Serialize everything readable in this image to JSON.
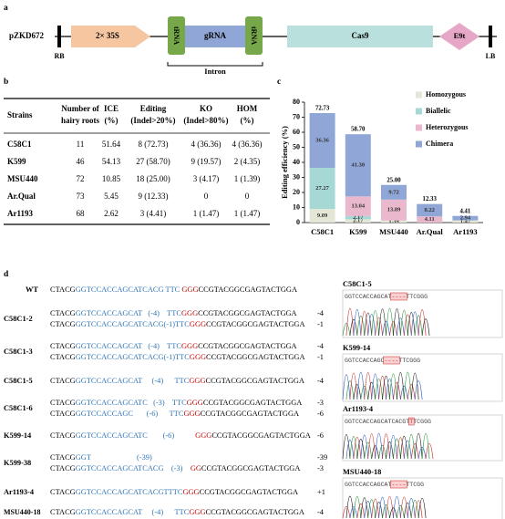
{
  "panel_a": {
    "label": "a",
    "construct": "pZKD672",
    "rb": "RB",
    "lb": "LB",
    "promoter": "2× 35S",
    "trna1": "tRNA",
    "grna": "gRNA",
    "trna2": "tRNA",
    "cas9": "Cas9",
    "terminator": "E9t",
    "intron": "Intron"
  },
  "panel_b": {
    "label": "b",
    "header": [
      [
        "Strains"
      ],
      [
        "Number of",
        "hairy roots"
      ],
      [
        "ICE",
        "(%)"
      ],
      [
        "Editing",
        "(Indel>20%)"
      ],
      [
        "KO",
        "(Indel>80%)"
      ],
      [
        "HOM",
        "(%)"
      ]
    ],
    "rows": [
      [
        "C58C1",
        11,
        51.64,
        "8 (72.73)",
        "4 (36.36)",
        "4 (36.36)"
      ],
      [
        "K599",
        46,
        54.13,
        "27 (58.70)",
        "9 (19.57)",
        "2 (4.35)"
      ],
      [
        "MSU440",
        72,
        10.85,
        "18 (25.00)",
        "3 (4.17)",
        "1 (1.39)"
      ],
      [
        "Ar.Qual",
        73,
        5.45,
        "9 (12.33)",
        0,
        0
      ],
      [
        "Ar1193",
        68,
        2.62,
        "3 (4.41)",
        "1 (1.47)",
        "1 (1.47)"
      ]
    ]
  },
  "chart_data": {
    "type": "stacked_bar",
    "panel_label": "c",
    "y_label": "Editing efficiency (%)",
    "categories": [
      "C58C1",
      "K599",
      "MSU440",
      "Ar.Qual",
      "Ar1193"
    ],
    "series": [
      {
        "name": "Homozygous",
        "color": "#e4e6d6",
        "values": [
          9.09,
          2.17,
          1.39,
          0,
          1.47
        ],
        "value_labels": [
          "9.09",
          "2.17",
          "1.39",
          null,
          "1.47"
        ]
      },
      {
        "name": "Biallelic",
        "color": "#a6d9d6",
        "values": [
          27.27,
          2.17,
          0,
          0,
          0
        ],
        "value_labels": [
          "27.27",
          "2.17",
          null,
          null,
          null
        ]
      },
      {
        "name": "Heterozygous",
        "color": "#e9b8cc",
        "values": [
          0,
          13.04,
          13.89,
          4.11,
          0
        ],
        "value_labels": [
          null,
          "13.04",
          "13.89",
          "4.11",
          null
        ]
      },
      {
        "name": "Chimera",
        "color": "#8fa6d6",
        "values": [
          36.36,
          41.3,
          9.72,
          8.22,
          2.94
        ],
        "value_labels": [
          "36.36",
          "41.30",
          "9.72",
          "8.22",
          "2.94"
        ]
      }
    ],
    "totals": [
      72.73,
      58.7,
      25,
      12.33,
      4.41
    ],
    "total_labels": [
      "72.73",
      "58.70",
      "25.00",
      "12.33",
      "4.41"
    ],
    "ylim": [
      0,
      80
    ],
    "yticks": [
      0,
      10,
      20,
      30,
      40,
      50,
      60,
      70,
      80
    ],
    "grid": false,
    "legend": "top-right"
  },
  "panel_d": {
    "label": "d",
    "rows": [
      {
        "name": "WT",
        "lines": [
          {
            "segments": [
              {
                "text": "CTACG",
                "color": "#000000"
              },
              {
                "text": "GGTCCACCAGCATCACG TTC ",
                "color": "#2e75b6"
              },
              {
                "text": "GGG",
                "color": "#c00000"
              },
              {
                "text": "CCGTACGGCGAGTACTGGA",
                "color": "#000000"
              }
            ]
          }
        ]
      },
      {
        "name": "C58C1-2",
        "lines": [
          {
            "segments": [
              {
                "text": "CTACG",
                "color": "#000000"
              },
              {
                "text": "GGTCCACCAGCAT   (-4)    TTC",
                "color": "#2e75b6"
              },
              {
                "text": "GGG",
                "color": "#c00000"
              },
              {
                "text": "CCGTACGGCGAGTACTGGA",
                "color": "#000000"
              }
            ],
            "indel": "-4"
          },
          {
            "segments": [
              {
                "text": "CTACG",
                "color": "#000000"
              },
              {
                "text": "GGTCCACCAGCATCACG(-1)TTC",
                "color": "#2e75b6"
              },
              {
                "text": "GGG",
                "color": "#c00000"
              },
              {
                "text": "CCGTACGGCGAGTACTGGA",
                "color": "#000000"
              }
            ],
            "indel": "-1"
          }
        ]
      },
      {
        "name": "C58C1-3",
        "lines": [
          {
            "segments": [
              {
                "text": "CTACG",
                "color": "#000000"
              },
              {
                "text": "GGTCCACCAGCAT   (-4)    TTC",
                "color": "#2e75b6"
              },
              {
                "text": "GGG",
                "color": "#c00000"
              },
              {
                "text": "CCGTACGGCGAGTACTGGA",
                "color": "#000000"
              }
            ],
            "indel": "-4"
          },
          {
            "segments": [
              {
                "text": "CTACG",
                "color": "#000000"
              },
              {
                "text": "GGTCCACCAGCATCACG(-1)TTC",
                "color": "#2e75b6"
              },
              {
                "text": "GGG",
                "color": "#c00000"
              },
              {
                "text": "CCGTACGGCGAGTACTGGA",
                "color": "#000000"
              }
            ],
            "indel": "-1"
          }
        ]
      },
      {
        "name": "C58C1-5",
        "lines": [
          {
            "segments": [
              {
                "text": "CTACG",
                "color": "#000000"
              },
              {
                "text": "GGTCCACCAGCAT     (-4)      TTC",
                "color": "#2e75b6"
              },
              {
                "text": "GGG",
                "color": "#c00000"
              },
              {
                "text": "CCGTACGGCGAGTACTGGA",
                "color": "#000000"
              }
            ],
            "indel": "-4"
          }
        ]
      },
      {
        "name": "C58C1-6",
        "lines": [
          {
            "segments": [
              {
                "text": "CTACG",
                "color": "#000000"
              },
              {
                "text": "GGTCCACCAGCATC   (-3)    TTC",
                "color": "#2e75b6"
              },
              {
                "text": "GGG",
                "color": "#c00000"
              },
              {
                "text": "CCGTACGGCGAGTACTGGA",
                "color": "#000000"
              }
            ],
            "indel": "-3"
          },
          {
            "segments": [
              {
                "text": "CTACG",
                "color": "#000000"
              },
              {
                "text": "GGTCCACCAGC       (-6)      TTC",
                "color": "#2e75b6"
              },
              {
                "text": "GGG",
                "color": "#c00000"
              },
              {
                "text": "CCGTACGGCGAGTACTGGA",
                "color": "#000000"
              }
            ],
            "indel": "-6"
          }
        ]
      },
      {
        "name": "K599-14",
        "lines": [
          {
            "segments": [
              {
                "text": "CTACG",
                "color": "#000000"
              },
              {
                "text": "GGTCCACCAGCATC        (-6)           ",
                "color": "#2e75b6"
              },
              {
                "text": "GGG",
                "color": "#c00000"
              },
              {
                "text": "CCGTACGGCGAGTACTGGA",
                "color": "#000000"
              }
            ],
            "indel": "-6"
          }
        ]
      },
      {
        "name": "K599-38",
        "lines": [
          {
            "segments": [
              {
                "text": "CTACG",
                "color": "#000000"
              },
              {
                "text": "GGT                        (-39)",
                "color": "#2e75b6"
              }
            ],
            "indel": "-39"
          },
          {
            "segments": [
              {
                "text": "CTACG",
                "color": "#000000"
              },
              {
                "text": "GGTCCACCAGCATCACG    (-3)    ",
                "color": "#2e75b6"
              },
              {
                "text": "GG",
                "color": "#c00000"
              },
              {
                "text": "CCGTACGGCGAGTACTGGA",
                "color": "#000000"
              }
            ],
            "indel": "-3"
          }
        ]
      },
      {
        "name": "Ar1193-4",
        "lines": [
          {
            "segments": [
              {
                "text": "CTACG",
                "color": "#000000"
              },
              {
                "text": "GGTCCACCAGCATCACGTTTC",
                "color": "#2e75b6"
              },
              {
                "text": "GGG",
                "color": "#c00000"
              },
              {
                "text": "CCGTACGGCGAGTACTGGA",
                "color": "#000000"
              }
            ],
            "indel": "+1"
          }
        ]
      },
      {
        "name": "MSU440-18",
        "lines": [
          {
            "segments": [
              {
                "text": "CTACG",
                "color": "#000000"
              },
              {
                "text": "GGTCCACCAGCAT     (-4)      TTC",
                "color": "#2e75b6"
              },
              {
                "text": "GGG",
                "color": "#c00000"
              },
              {
                "text": "CCGTACGGCGAGTACTGGA",
                "color": "#000000"
              }
            ],
            "indel": "-4"
          }
        ]
      }
    ],
    "chromatograms": [
      {
        "name": "C58C1-5",
        "seq": [
          "GGTCCACCAGCAT",
          "----",
          "TTCGGG"
        ]
      },
      {
        "name": "K599-14",
        "seq": [
          "GGTCCACCAGC",
          "----",
          "TTCGGG"
        ]
      },
      {
        "name": "Ar1193-4",
        "seq": [
          "GGTCCACCAGCATCACGT",
          "T",
          "TCGGG"
        ]
      },
      {
        "name": "MSU440-18",
        "seq": [
          "GGTCCACCAGCAT",
          "----",
          "TTCGG"
        ]
      }
    ]
  }
}
